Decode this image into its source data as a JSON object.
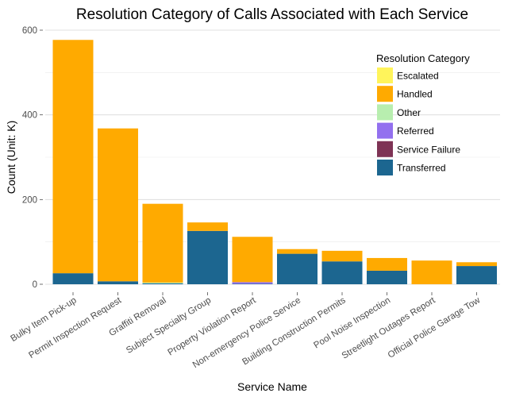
{
  "chart_data": {
    "type": "bar",
    "stacked": true,
    "title": "Resolution Category of Calls Associated with Each Service",
    "xlabel": "Service Name",
    "ylabel": "Count (Unit: K)",
    "ylim": [
      0,
      620
    ],
    "yticks": [
      0,
      200,
      400,
      600
    ],
    "grid": true,
    "legend": {
      "title": "Resolution Category",
      "position": "top-right"
    },
    "categories": [
      "Bulky Item Pick-up",
      "Permit Inspection Request",
      "Graffiti Removal",
      "Subject Specialty Group",
      "Property Violation Report",
      "Non-emergency Police Service",
      "Building Construction Permits",
      "Pool Noise Inspection",
      "Streetlight Outages Report",
      "Official Police Garage Tow"
    ],
    "series": [
      {
        "name": "Escalated",
        "color": "#FFF45B",
        "values": [
          0,
          0,
          0,
          0,
          0,
          0,
          0,
          0,
          0,
          0
        ]
      },
      {
        "name": "Handled",
        "color": "#FFAA00",
        "values": [
          551,
          361,
          186,
          20,
          107,
          11,
          25,
          30,
          56,
          9
        ]
      },
      {
        "name": "Other",
        "color": "#B8EEAF",
        "values": [
          0,
          0,
          2,
          0,
          0,
          0,
          0,
          0,
          0,
          0
        ]
      },
      {
        "name": "Referred",
        "color": "#9370EF",
        "values": [
          0,
          0,
          0,
          0,
          4,
          0,
          0,
          0,
          0,
          0
        ]
      },
      {
        "name": "Service Failure",
        "color": "#7E3355",
        "values": [
          0,
          0,
          0,
          0,
          0,
          0,
          0,
          0,
          0,
          0
        ]
      },
      {
        "name": "Transferred",
        "color": "#1C6690",
        "values": [
          26,
          7,
          2,
          126,
          1,
          72,
          54,
          32,
          0,
          43
        ]
      }
    ]
  }
}
